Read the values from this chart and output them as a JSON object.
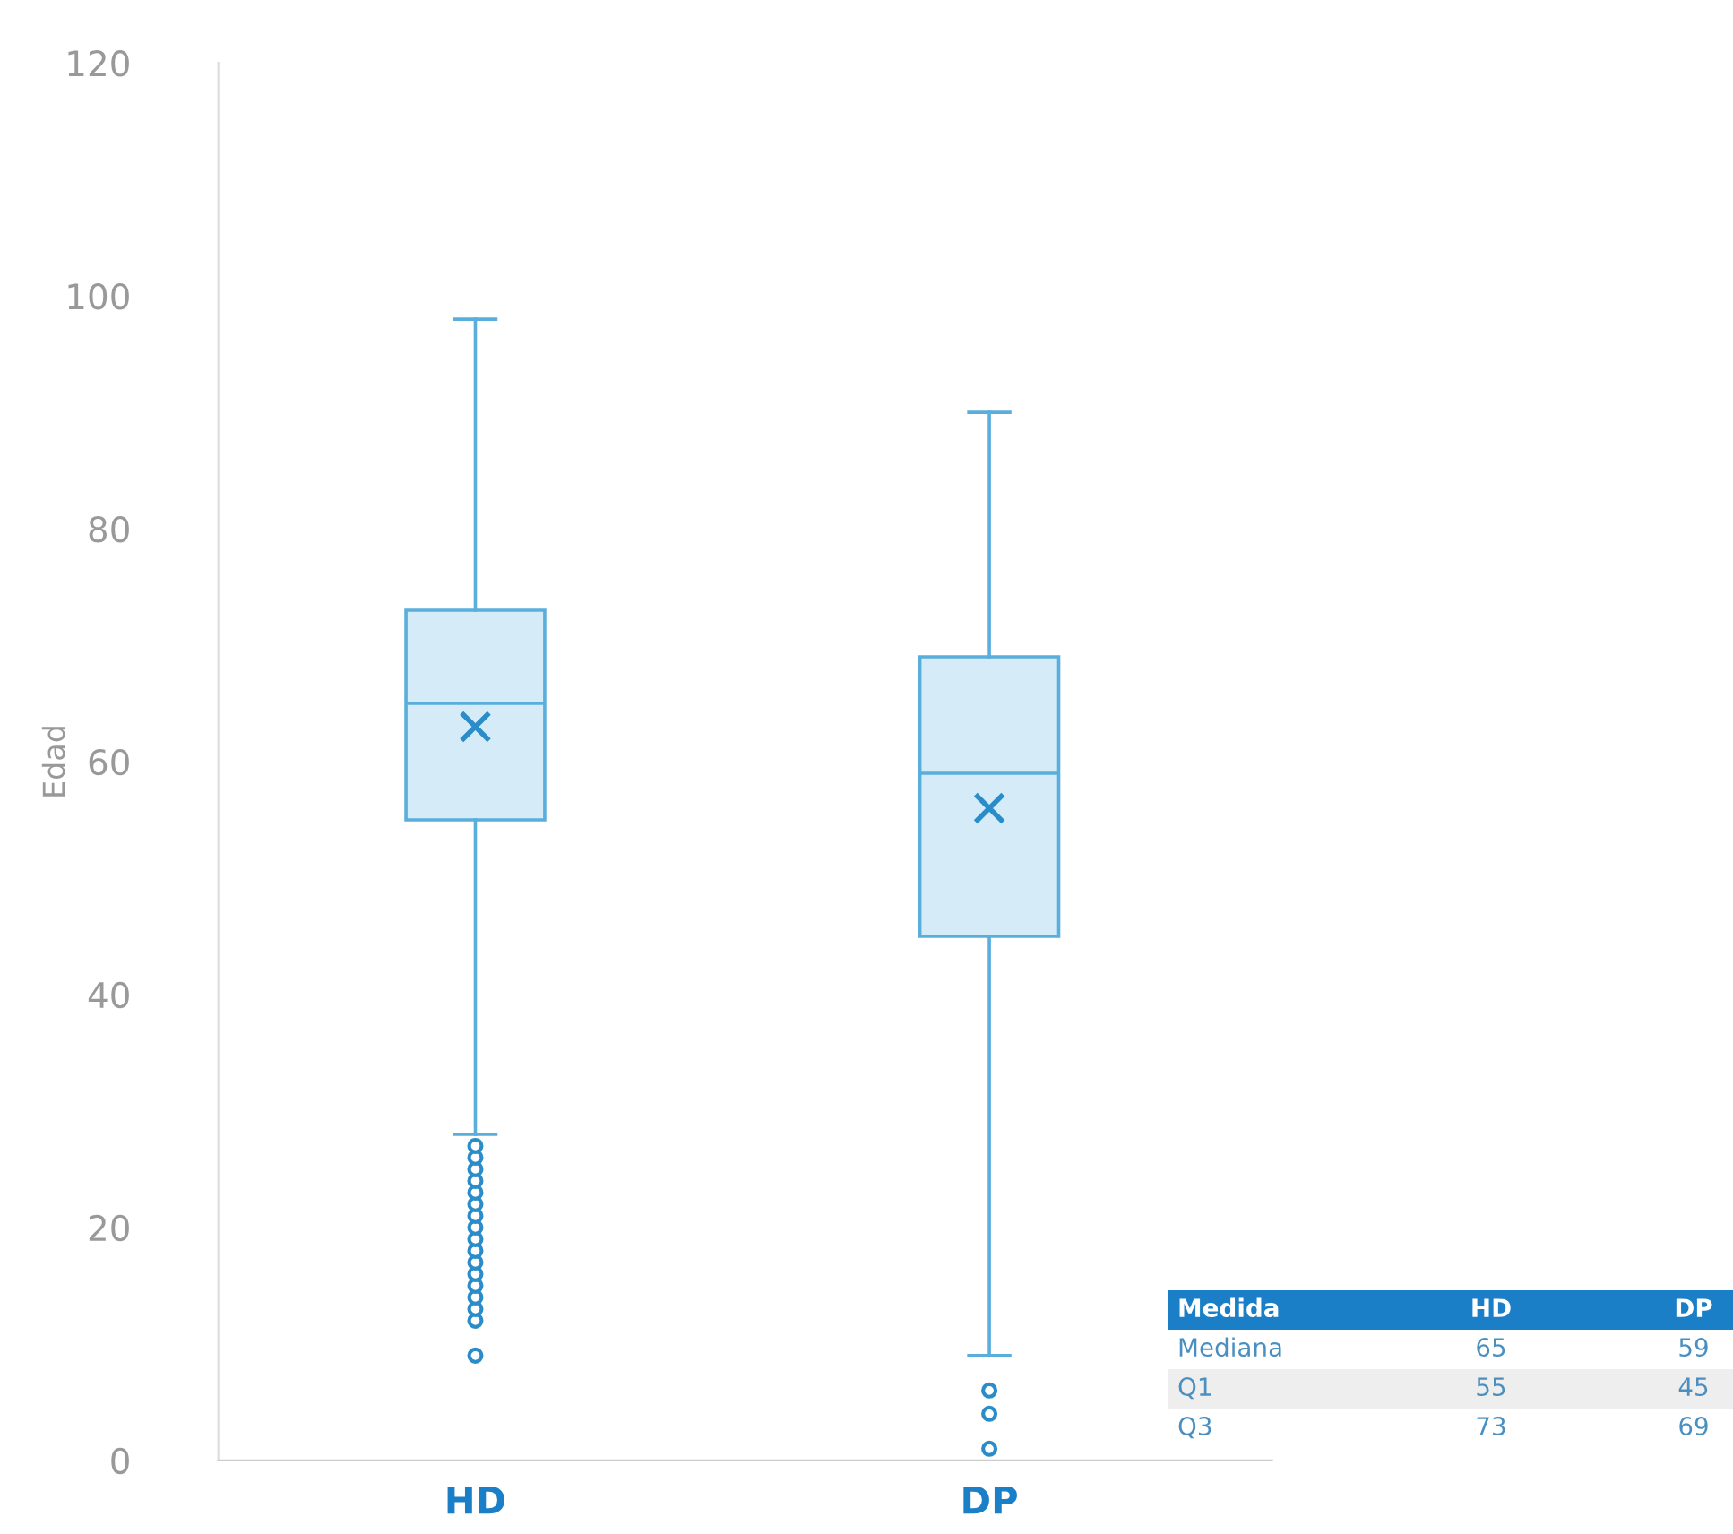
{
  "chart_data": {
    "type": "box",
    "ylabel": "Edad",
    "categories": [
      "HD",
      "DP"
    ],
    "boxes": [
      {
        "low": 28,
        "q1": 55,
        "median": 65,
        "q3": 73,
        "high": 98,
        "mean": 63,
        "outliers": [
          9,
          12,
          13,
          14,
          15,
          16,
          17,
          18,
          19,
          20,
          21,
          22,
          23,
          24,
          25,
          26,
          27
        ]
      },
      {
        "low": 9,
        "q1": 45,
        "median": 59,
        "q3": 69,
        "high": 90,
        "mean": 56,
        "outliers": [
          1,
          4,
          6
        ]
      }
    ],
    "color": "#5aaedc",
    "ylim": [
      0,
      120
    ],
    "yticks": [
      0,
      20,
      40,
      60,
      80,
      100,
      120
    ],
    "grid": false,
    "annotations": [
      "Medida",
      "HD",
      "DP",
      "Mediana",
      "65",
      "59",
      "Q1",
      "55",
      "45",
      "Q3",
      "73",
      "69"
    ]
  }
}
